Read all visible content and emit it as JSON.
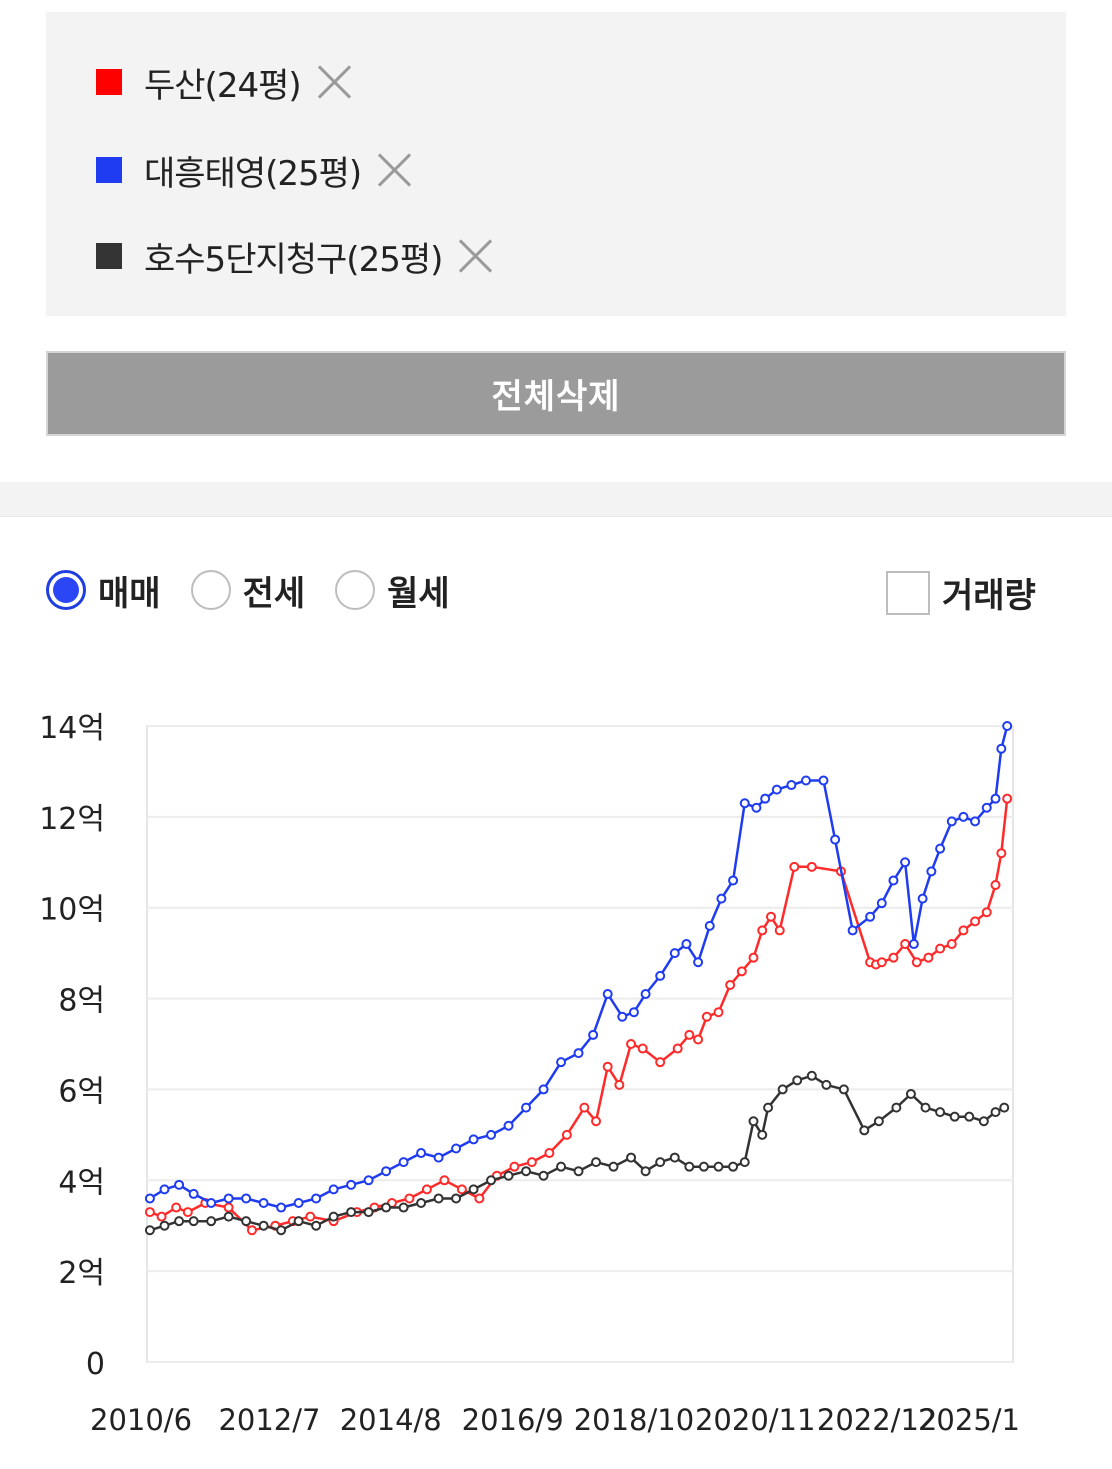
{
  "compare_list": {
    "items": [
      {
        "label": "두산(24평)",
        "color": "#ff0000",
        "remove_icon": "close-icon"
      },
      {
        "label": "대흥태영(25평)",
        "color": "#1f3cf0",
        "remove_icon": "close-icon"
      },
      {
        "label": "호수5단지청구(25평)",
        "color": "#333333",
        "remove_icon": "close-icon"
      }
    ],
    "delete_all_label": "전체삭제"
  },
  "trade_type": {
    "options": [
      {
        "label": "매매",
        "checked": true
      },
      {
        "label": "전세",
        "checked": false
      },
      {
        "label": "월세",
        "checked": false
      }
    ],
    "volume_label": "거래량",
    "volume_checked": false
  },
  "chart_data": {
    "type": "line",
    "xlabel": "",
    "ylabel": "",
    "y_unit": "억",
    "ylim": [
      0,
      14
    ],
    "y_ticks": [
      0,
      2,
      4,
      6,
      8,
      10,
      12,
      14
    ],
    "y_tick_labels": [
      "0",
      "2억",
      "4억",
      "6억",
      "8억",
      "10억",
      "12억",
      "14억"
    ],
    "xlim": [
      2010.4,
      2025.25
    ],
    "x_ticks": [
      2010.42,
      2012.5,
      2014.58,
      2016.67,
      2018.75,
      2020.83,
      2022.92,
      2025.0
    ],
    "x_tick_labels": [
      "2010/6",
      "2012/7",
      "2014/8",
      "2016/9",
      "2018/10",
      "2020/11",
      "2022/12",
      "2025/1"
    ],
    "grid": true,
    "legend": "none",
    "series": [
      {
        "name": "두산(24평)",
        "color": "#ff2a2a",
        "x": [
          2010.45,
          2010.65,
          2010.9,
          2011.1,
          2011.4,
          2011.8,
          2012.2,
          2012.6,
          2012.9,
          2013.2,
          2013.6,
          2014.0,
          2014.3,
          2014.6,
          2014.9,
          2015.2,
          2015.5,
          2015.8,
          2016.1,
          2016.4,
          2016.7,
          2017.0,
          2017.3,
          2017.6,
          2017.9,
          2018.1,
          2018.3,
          2018.5,
          2018.7,
          2018.9,
          2019.2,
          2019.5,
          2019.7,
          2019.85,
          2020.0,
          2020.2,
          2020.4,
          2020.6,
          2020.8,
          2020.95,
          2021.1,
          2021.25,
          2021.5,
          2021.8,
          2022.3,
          2022.8,
          2022.9,
          2023.0,
          2023.2,
          2023.4,
          2023.6,
          2023.8,
          2024.0,
          2024.2,
          2024.4,
          2024.6,
          2024.8,
          2024.95,
          2025.05,
          2025.15
        ],
        "y": [
          3.3,
          3.2,
          3.4,
          3.3,
          3.5,
          3.4,
          2.9,
          3.0,
          3.1,
          3.2,
          3.1,
          3.3,
          3.4,
          3.5,
          3.6,
          3.8,
          4.0,
          3.8,
          3.6,
          4.1,
          4.3,
          4.4,
          4.6,
          5.0,
          5.6,
          5.3,
          6.5,
          6.1,
          7.0,
          6.9,
          6.6,
          6.9,
          7.2,
          7.1,
          7.6,
          7.7,
          8.3,
          8.6,
          8.9,
          9.5,
          9.8,
          9.5,
          10.9,
          10.9,
          10.8,
          8.8,
          8.75,
          8.8,
          8.9,
          9.2,
          8.8,
          8.9,
          9.1,
          9.2,
          9.5,
          9.7,
          9.9,
          10.5,
          11.2,
          12.4
        ],
        "markers": true
      },
      {
        "name": "대흥태영(25평)",
        "color": "#1f3cf0",
        "x": [
          2010.45,
          2010.7,
          2010.95,
          2011.2,
          2011.5,
          2011.8,
          2012.1,
          2012.4,
          2012.7,
          2013.0,
          2013.3,
          2013.6,
          2013.9,
          2014.2,
          2014.5,
          2014.8,
          2015.1,
          2015.4,
          2015.7,
          2016.0,
          2016.3,
          2016.6,
          2016.9,
          2017.2,
          2017.5,
          2017.8,
          2018.05,
          2018.3,
          2018.55,
          2018.75,
          2018.95,
          2019.2,
          2019.45,
          2019.65,
          2019.85,
          2020.05,
          2020.25,
          2020.45,
          2020.65,
          2020.85,
          2021.0,
          2021.2,
          2021.45,
          2021.7,
          2022.0,
          2022.2,
          2022.5,
          2022.8,
          2023.0,
          2023.2,
          2023.4,
          2023.55,
          2023.7,
          2023.85,
          2024.0,
          2024.2,
          2024.4,
          2024.6,
          2024.8,
          2024.95,
          2025.05,
          2025.15
        ],
        "y": [
          3.6,
          3.8,
          3.9,
          3.7,
          3.5,
          3.6,
          3.6,
          3.5,
          3.4,
          3.5,
          3.6,
          3.8,
          3.9,
          4.0,
          4.2,
          4.4,
          4.6,
          4.5,
          4.7,
          4.9,
          5.0,
          5.2,
          5.6,
          6.0,
          6.6,
          6.8,
          7.2,
          8.1,
          7.6,
          7.7,
          8.1,
          8.5,
          9.0,
          9.2,
          8.8,
          9.6,
          10.2,
          10.6,
          12.3,
          12.2,
          12.4,
          12.6,
          12.7,
          12.8,
          12.8,
          11.5,
          9.5,
          9.8,
          10.1,
          10.6,
          11.0,
          9.2,
          10.2,
          10.8,
          11.3,
          11.9,
          12.0,
          11.9,
          12.2,
          12.4,
          13.5,
          14.0
        ],
        "markers": true
      },
      {
        "name": "호수5단지청구(25평)",
        "color": "#333333",
        "x": [
          2010.45,
          2010.7,
          2010.95,
          2011.2,
          2011.5,
          2011.8,
          2012.1,
          2012.4,
          2012.7,
          2013.0,
          2013.3,
          2013.6,
          2013.9,
          2014.2,
          2014.5,
          2014.8,
          2015.1,
          2015.4,
          2015.7,
          2016.0,
          2016.3,
          2016.6,
          2016.9,
          2017.2,
          2017.5,
          2017.8,
          2018.1,
          2018.4,
          2018.7,
          2018.95,
          2019.2,
          2019.45,
          2019.7,
          2019.95,
          2020.2,
          2020.45,
          2020.65,
          2020.8,
          2020.95,
          2021.05,
          2021.3,
          2021.55,
          2021.8,
          2022.05,
          2022.35,
          2022.7,
          2022.95,
          2023.25,
          2023.5,
          2023.75,
          2024.0,
          2024.25,
          2024.5,
          2024.75,
          2024.95,
          2025.1
        ],
        "y": [
          2.9,
          3.0,
          3.1,
          3.1,
          3.1,
          3.2,
          3.1,
          3.0,
          2.9,
          3.1,
          3.0,
          3.2,
          3.3,
          3.3,
          3.4,
          3.4,
          3.5,
          3.6,
          3.6,
          3.8,
          4.0,
          4.1,
          4.2,
          4.1,
          4.3,
          4.2,
          4.4,
          4.3,
          4.5,
          4.2,
          4.4,
          4.5,
          4.3,
          4.3,
          4.3,
          4.3,
          4.4,
          5.3,
          5.0,
          5.6,
          6.0,
          6.2,
          6.3,
          6.1,
          6.0,
          5.1,
          5.3,
          5.6,
          5.9,
          5.6,
          5.5,
          5.4,
          5.4,
          5.3,
          5.5,
          5.6
        ],
        "markers": true
      }
    ]
  }
}
